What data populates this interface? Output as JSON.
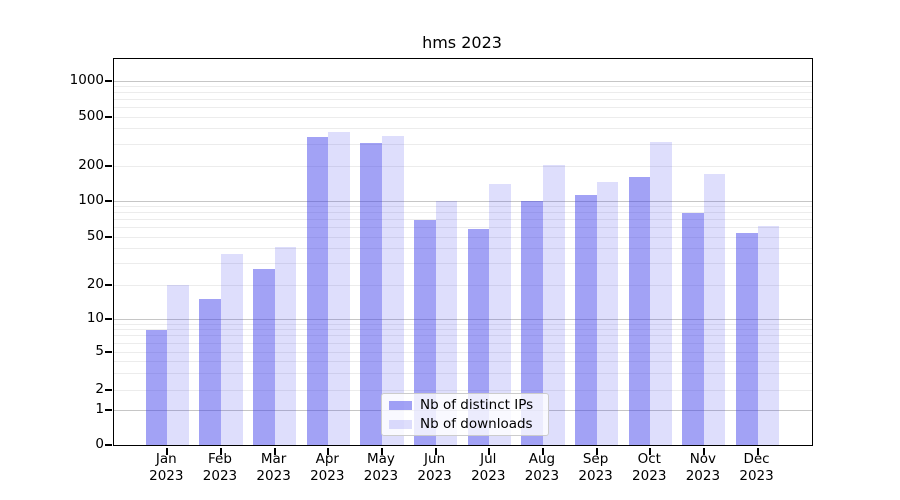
{
  "title": "hms 2023",
  "background_color": "#ffffff",
  "text_color": "#000000",
  "axis": {
    "y_tick_labels": [
      "0",
      "1",
      "2",
      "5",
      "10",
      "20",
      "50",
      "100",
      "200",
      "500",
      "1000"
    ],
    "x_tick_labels": [
      "Jan 2023",
      "Feb 2023",
      "Mar 2023",
      "Apr 2023",
      "May 2023",
      "Jun 2023",
      "Jul 2023",
      "Aug 2023",
      "Sep 2023",
      "Oct 2023",
      "Nov 2023",
      "Dec 2023"
    ],
    "major_grid_color": "#c6c6c6",
    "minor_grid_color": "#ececec"
  },
  "chart_data": {
    "type": "bar",
    "title": "hms 2023",
    "xlabel": "",
    "ylabel": "",
    "yscale": "symlog",
    "ylim": [
      0,
      1400
    ],
    "yticks": [
      0,
      1,
      2,
      5,
      10,
      20,
      50,
      100,
      200,
      500,
      1000
    ],
    "grid": "major and minor horizontal gridlines",
    "legend_position": "lower center",
    "categories": [
      "Jan 2023",
      "Feb 2023",
      "Mar 2023",
      "Apr 2023",
      "May 2023",
      "Jun 2023",
      "Jul 2023",
      "Aug 2023",
      "Sep 2023",
      "Oct 2023",
      "Nov 2023",
      "Dec 2023"
    ],
    "series": [
      {
        "name": "Nb of distinct IPs",
        "color": "rgba(60,60,235,0.48)",
        "solid_color": "#a1a1f4",
        "values": [
          8,
          15,
          27,
          345,
          305,
          70,
          58,
          100,
          113,
          160,
          80,
          54
        ]
      },
      {
        "name": "Nb of downloads",
        "color": "rgba(60,60,235,0.17)",
        "solid_color": "#dedefb",
        "values": [
          20,
          36,
          41,
          375,
          350,
          100,
          140,
          205,
          147,
          315,
          170,
          62
        ]
      }
    ]
  }
}
